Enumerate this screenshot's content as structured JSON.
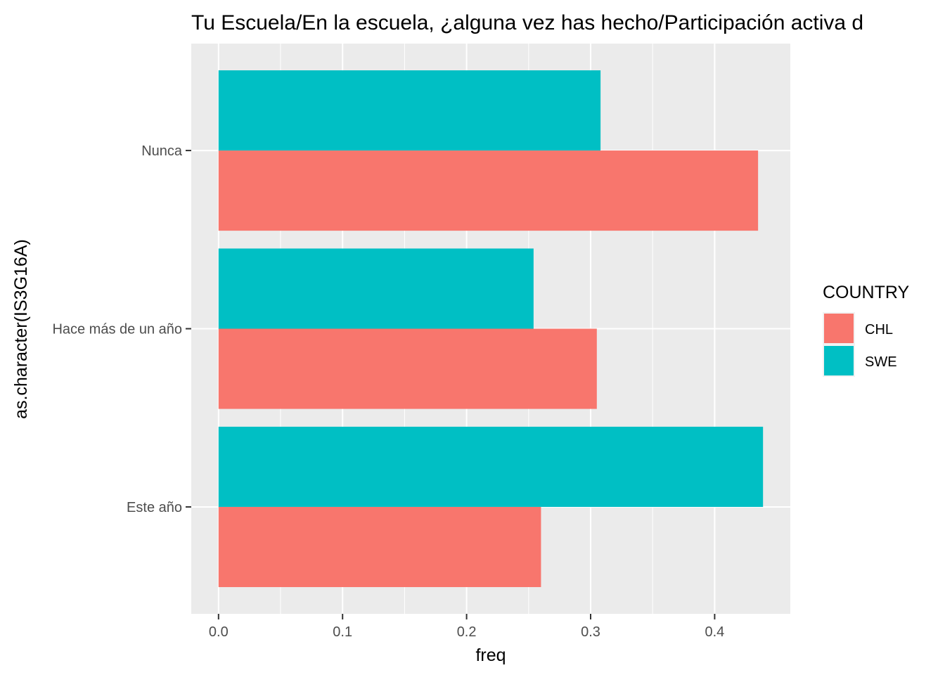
{
  "chart_data": {
    "type": "bar",
    "orientation": "horizontal",
    "title": "Tu Escuela/En la escuela, ¿alguna vez has hecho/Participación activa d",
    "xlabel": "freq",
    "ylabel": "as.character(IS3G16A)",
    "categories": [
      "Este año",
      "Hace más de un año",
      "Nunca"
    ],
    "series": [
      {
        "name": "CHL",
        "color": "#F8766D",
        "values": [
          0.26,
          0.305,
          0.435
        ]
      },
      {
        "name": "SWE",
        "color": "#00BFC4",
        "values": [
          0.439,
          0.254,
          0.308
        ]
      }
    ],
    "xlim": [
      -0.022,
      0.461
    ],
    "xticks": [
      0.0,
      0.1,
      0.2,
      0.3,
      0.4
    ],
    "xtick_labels": [
      "0.0",
      "0.1",
      "0.2",
      "0.3",
      "0.4"
    ],
    "grid": true,
    "panel_background": "#EBEBEB",
    "legend": {
      "title": "COUNTRY",
      "position": "right",
      "entries": [
        "CHL",
        "SWE"
      ]
    }
  }
}
